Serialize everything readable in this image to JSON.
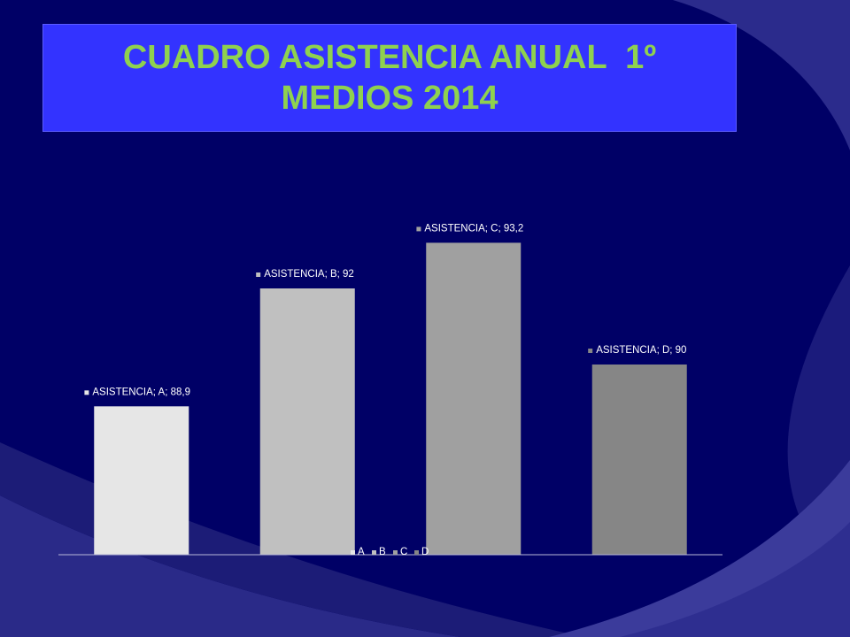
{
  "slide": {
    "title_line1": "CUADRO ASISTENCIA ANUAL  1º",
    "title_line2": "MEDIOS 2014",
    "title_color": "#8fd14f",
    "title_bg": "#3333ff",
    "background": "#000066"
  },
  "chart_data": {
    "type": "bar",
    "title": "",
    "categories": [
      "A",
      "B",
      "C",
      "D"
    ],
    "series": [
      {
        "name": "ASISTENCIA",
        "values": [
          88.9,
          92,
          93.2,
          90
        ]
      }
    ],
    "value_labels": [
      "88,9",
      "92",
      "93,2",
      "90"
    ],
    "bar_colors": [
      "#e6e6e6",
      "#c0c0c0",
      "#a0a0a0",
      "#868686"
    ],
    "ylim": [
      85,
      95
    ],
    "grid": false,
    "legend": {
      "position": "bottom",
      "entries": [
        "A",
        "B",
        "C",
        "D"
      ]
    },
    "data_label_separator": "; "
  }
}
